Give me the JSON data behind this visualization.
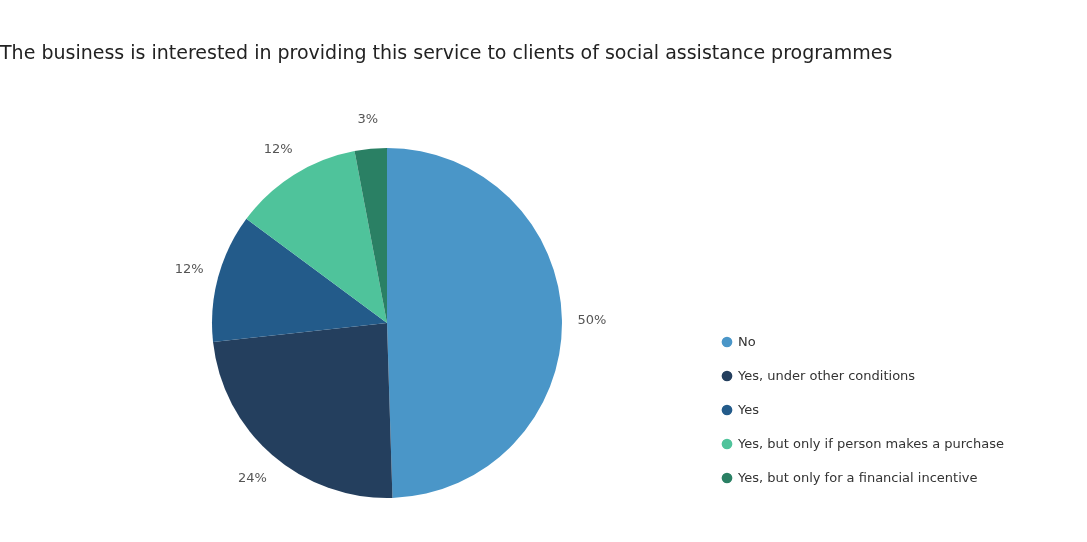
{
  "chart_data": {
    "type": "pie",
    "title": "The business is interested in providing this service to clients of social assistance programmes",
    "categories": [
      "No",
      "Yes, under other conditions",
      "Yes",
      "Yes, but only if person makes a purchase",
      "Yes, but only for a financial incentive"
    ],
    "values": [
      50,
      24,
      12,
      12,
      3
    ],
    "colors": [
      "#4a96c8",
      "#243f5e",
      "#235b8a",
      "#4fc39b",
      "#2a8064"
    ],
    "value_labels": [
      "50%",
      "24%",
      "12%",
      "12%",
      "3%"
    ],
    "legend": "right"
  }
}
